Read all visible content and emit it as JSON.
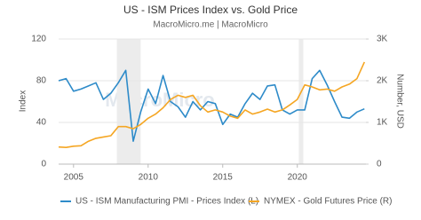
{
  "chart_data": {
    "type": "line",
    "title": "US - ISM Prices Index vs. Gold Price",
    "subtitle": "MacroMicro.me | MacroMicro",
    "watermark": "MacroMicro",
    "y_label": "Index",
    "y2_label": "Number, USD",
    "x": [
      2004,
      2004.5,
      2005,
      2005.5,
      2006,
      2006.5,
      2007,
      2007.5,
      2008,
      2008.5,
      2009,
      2009.5,
      2010,
      2010.5,
      2011,
      2011.5,
      2012,
      2012.5,
      2013,
      2013.5,
      2014,
      2014.5,
      2015,
      2015.5,
      2016,
      2016.5,
      2017,
      2017.5,
      2018,
      2018.5,
      2019,
      2019.5,
      2020,
      2020.5,
      2021,
      2021.5,
      2022,
      2022.5,
      2023,
      2023.5,
      2024,
      2024.5
    ],
    "series": [
      {
        "name": "US - ISM Manufacturing PMI - Prices Index (L)",
        "color": "#2e8bc9",
        "axis": "y",
        "values": [
          80,
          82,
          70,
          72,
          75,
          78,
          62,
          68,
          78,
          90,
          22,
          50,
          72,
          58,
          85,
          60,
          55,
          45,
          60,
          52,
          60,
          58,
          38,
          48,
          45,
          58,
          68,
          62,
          75,
          76,
          52,
          48,
          52,
          52,
          82,
          90,
          76,
          60,
          45,
          44,
          50,
          53
        ]
      },
      {
        "name": "NYMEX - Gold Futures Price (R)",
        "color": "#f5a623",
        "axis": "y2",
        "values": [
          410,
          400,
          430,
          440,
          550,
          620,
          650,
          680,
          900,
          900,
          850,
          950,
          1100,
          1200,
          1350,
          1550,
          1650,
          1600,
          1650,
          1400,
          1250,
          1300,
          1250,
          1150,
          1100,
          1300,
          1200,
          1250,
          1320,
          1250,
          1300,
          1420,
          1550,
          1900,
          1850,
          1780,
          1800,
          1750,
          1850,
          1920,
          2050,
          2450
        ]
      }
    ],
    "shaded_periods": [
      [
        2007.9,
        2009.5
      ],
      [
        2020.1,
        2020.4
      ]
    ],
    "xlim": [
      2004,
      2024.6
    ],
    "xticks": [
      2005,
      2010,
      2015,
      2020
    ],
    "ylim": [
      0,
      120
    ],
    "yticks": [
      0,
      40,
      80,
      120
    ],
    "y2lim": [
      0,
      3000
    ],
    "y2ticks": [
      0,
      {
        "value": 1000,
        "label": "1K"
      },
      {
        "value": 2000,
        "label": "2K"
      },
      {
        "value": 3000,
        "label": "3K"
      }
    ],
    "grid": true,
    "legend": "bottom"
  }
}
